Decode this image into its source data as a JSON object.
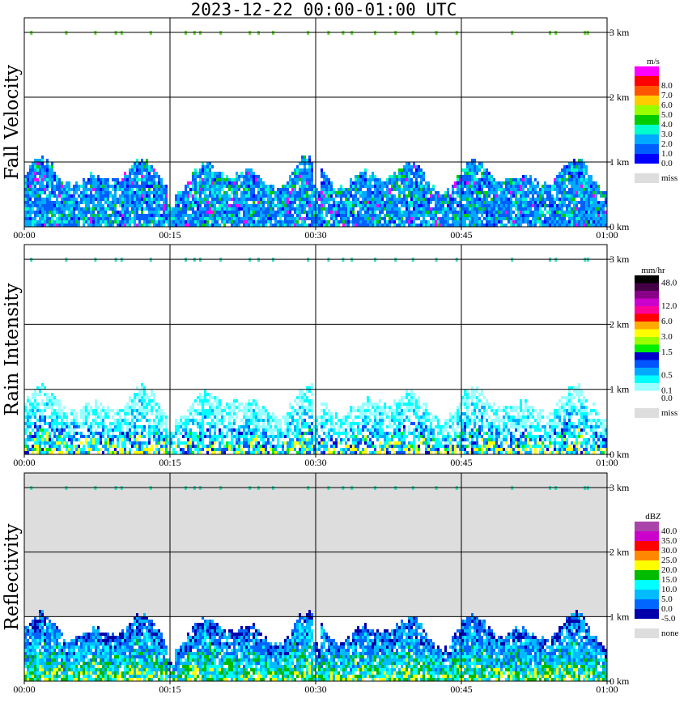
{
  "title": "2023-12-22   00:00-01:00 UTC",
  "chart_data": [
    {
      "type": "heatmap",
      "ylabel": "Fall Velocity",
      "units": "m/s",
      "x_ticks": [
        "00:00",
        "00:15",
        "00:30",
        "00:45",
        "01:00"
      ],
      "y_ticks": [
        "0 km",
        "1 km",
        "2 km",
        "3 km"
      ],
      "ylim_km": [
        0,
        3.5
      ],
      "echo_top_km": 1.0,
      "grid": true,
      "legend_position": "right",
      "colorbar": [
        {
          "label": "0.0",
          "color": "#0000ff"
        },
        {
          "label": "1.0",
          "color": "#0060ff"
        },
        {
          "label": "2.0",
          "color": "#00aaff"
        },
        {
          "label": "3.0",
          "color": "#00ffcc"
        },
        {
          "label": "4.0",
          "color": "#00cc00"
        },
        {
          "label": "5.0",
          "color": "#99ff00"
        },
        {
          "label": "6.0",
          "color": "#ffcc00"
        },
        {
          "label": "7.0",
          "color": "#ff5500"
        },
        {
          "label": "8.0",
          "color": "#ff0000"
        },
        {
          "label": "",
          "color": "#ff00ff"
        }
      ],
      "missing": {
        "label": "miss",
        "color": "#dddddd"
      },
      "background_color": "#ffffff"
    },
    {
      "type": "heatmap",
      "ylabel": "Rain Intensity",
      "units": "mm/hr",
      "x_ticks": [
        "00:00",
        "00:15",
        "00:30",
        "00:45",
        "01:00"
      ],
      "y_ticks": [
        "0 km",
        "1 km",
        "2 km",
        "3 km"
      ],
      "ylim_km": [
        0,
        3.5
      ],
      "echo_top_km": 1.0,
      "grid": true,
      "legend_position": "right",
      "colorbar": [
        {
          "label": "0.0",
          "color": "#ffffff"
        },
        {
          "label": "0.1",
          "color": "#99ffff"
        },
        {
          "label": "",
          "color": "#00ffff"
        },
        {
          "label": "0.5",
          "color": "#00aaff"
        },
        {
          "label": "",
          "color": "#0055ff"
        },
        {
          "label": "",
          "color": "#0000cc"
        },
        {
          "label": "1.5",
          "color": "#00ee00"
        },
        {
          "label": "",
          "color": "#99ff00"
        },
        {
          "label": "3.0",
          "color": "#ffff00"
        },
        {
          "label": "",
          "color": "#ffaa00"
        },
        {
          "label": "6.0",
          "color": "#ff0000"
        },
        {
          "label": "",
          "color": "#ff0099"
        },
        {
          "label": "12.0",
          "color": "#cc00cc"
        },
        {
          "label": "",
          "color": "#880088"
        },
        {
          "label": "",
          "color": "#440044"
        },
        {
          "label": "48.0",
          "color": "#000000"
        }
      ],
      "missing": {
        "label": "miss",
        "color": "#dddddd"
      },
      "background_color": "#ffffff"
    },
    {
      "type": "heatmap",
      "ylabel": "Reflectivity",
      "units": "dBZ",
      "x_ticks": [
        "00:00",
        "00:15",
        "00:30",
        "00:45",
        "01:00"
      ],
      "y_ticks": [
        "0 km",
        "1 km",
        "2 km",
        "3 km"
      ],
      "ylim_km": [
        0,
        3.5
      ],
      "echo_top_km": 1.0,
      "grid": true,
      "legend_position": "right",
      "colorbar": [
        {
          "label": "-5.0",
          "color": "#0000aa"
        },
        {
          "label": "0.0",
          "color": "#0066ff"
        },
        {
          "label": "5.0",
          "color": "#00bbff"
        },
        {
          "label": "10.0",
          "color": "#00ffff"
        },
        {
          "label": "15.0",
          "color": "#00bb00"
        },
        {
          "label": "20.0",
          "color": "#ffff00"
        },
        {
          "label": "25.0",
          "color": "#ff8800"
        },
        {
          "label": "30.0",
          "color": "#ff0000"
        },
        {
          "label": "35.0",
          "color": "#cc00cc"
        },
        {
          "label": "40.0",
          "color": "#aa44aa"
        }
      ],
      "missing": {
        "label": "none",
        "color": "#dddddd"
      },
      "background_color": "#dddddd"
    }
  ]
}
